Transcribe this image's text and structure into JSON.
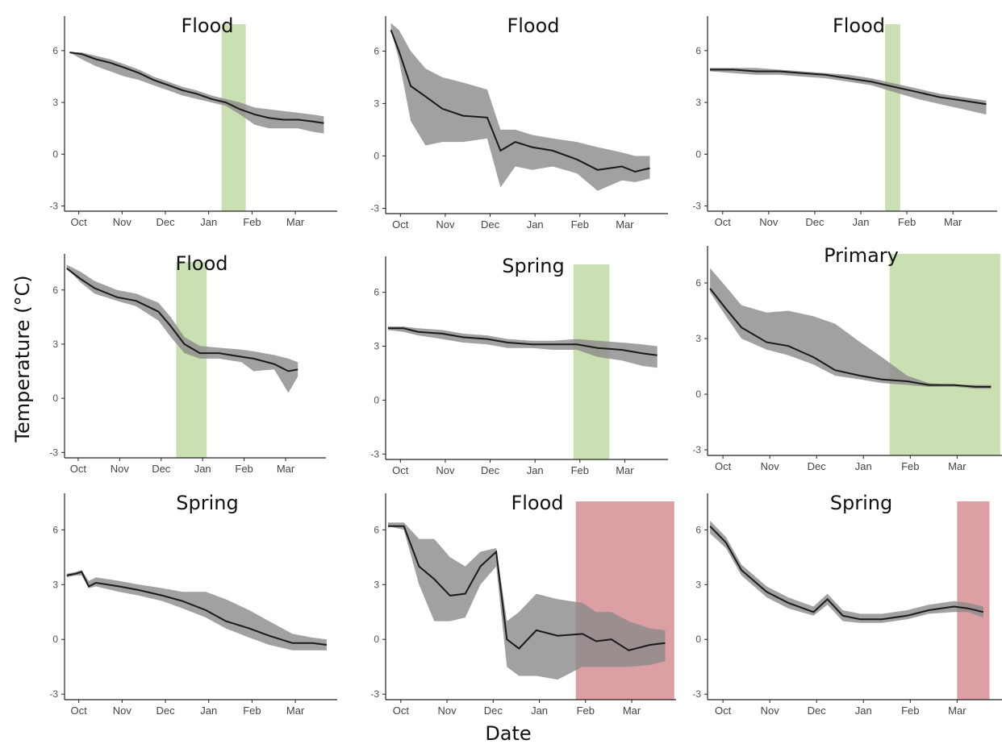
{
  "figure": {
    "ylabel": "Temperature (°C)",
    "xlabel": "Date"
  },
  "colors": {
    "line": "#1a1a1a",
    "ribbon": "#8a8a8a",
    "green": "#a9cc7e",
    "red": "#c0505a"
  },
  "chart_data": [
    {
      "type": "line",
      "title": "Flood",
      "x_ticks": [
        "Oct",
        "Nov",
        "Dec",
        "Jan",
        "Feb",
        "Mar"
      ],
      "y_ticks": [
        "6",
        "3",
        "0",
        "-3"
      ],
      "ylim": [
        -3.3,
        8
      ],
      "x": [
        "09-27",
        "10-05",
        "10-15",
        "10-25",
        "11-05",
        "11-15",
        "11-25",
        "12-05",
        "12-15",
        "12-25",
        "01-05",
        "01-15",
        "01-25",
        "02-05",
        "02-15",
        "02-25",
        "03-05",
        "03-15",
        "03-23"
      ],
      "y": [
        5.9,
        5.8,
        5.5,
        5.3,
        5.0,
        4.7,
        4.3,
        4.0,
        3.7,
        3.5,
        3.2,
        3.0,
        2.6,
        2.3,
        2.1,
        2.0,
        2.0,
        1.9,
        1.8
      ],
      "lower": [
        5.9,
        5.5,
        5.1,
        4.8,
        4.5,
        4.3,
        4.0,
        3.7,
        3.4,
        3.2,
        3.0,
        2.8,
        2.3,
        1.7,
        1.5,
        1.5,
        1.5,
        1.3,
        1.2
      ],
      "upper": [
        5.9,
        5.9,
        5.7,
        5.5,
        5.2,
        4.9,
        4.5,
        4.2,
        3.9,
        3.7,
        3.4,
        3.2,
        3.0,
        2.7,
        2.6,
        2.5,
        2.4,
        2.3,
        2.2
      ],
      "highlight": {
        "start": "01-12",
        "end": "01-29",
        "color": "green"
      }
    },
    {
      "type": "line",
      "title": "Flood",
      "x_ticks": [
        "Oct",
        "Nov",
        "Dec",
        "Jan",
        "Feb",
        "Mar"
      ],
      "y_ticks": [
        "6",
        "3",
        "0",
        "-3"
      ],
      "ylim": [
        -3.3,
        8
      ],
      "x": [
        "09-27",
        "10-02",
        "10-10",
        "10-20",
        "11-01",
        "11-15",
        "12-01",
        "12-10",
        "12-20",
        "01-01",
        "01-15",
        "02-01",
        "02-15",
        "03-01",
        "03-10",
        "03-20"
      ],
      "y": [
        7.2,
        6.0,
        4.0,
        3.4,
        2.7,
        2.3,
        2.2,
        0.3,
        0.8,
        0.5,
        0.3,
        -0.2,
        -0.8,
        -0.6,
        -0.9,
        -0.7
      ],
      "lower": [
        7.2,
        5.5,
        2.0,
        0.6,
        0.8,
        0.8,
        1.0,
        -1.8,
        -0.6,
        -0.8,
        -0.6,
        -1.0,
        -2.0,
        -1.4,
        -1.5,
        -1.3
      ],
      "upper": [
        7.6,
        7.2,
        6.0,
        5.0,
        4.5,
        4.2,
        3.8,
        1.5,
        1.5,
        1.2,
        1.0,
        0.8,
        0.5,
        0.2,
        0.0,
        0.0
      ],
      "highlight": null
    },
    {
      "type": "line",
      "title": "Flood",
      "x_ticks": [
        "Oct",
        "Nov",
        "Dec",
        "Jan",
        "Feb",
        "Mar"
      ],
      "y_ticks": [
        "6",
        "3",
        "0",
        "-3"
      ],
      "ylim": [
        -3.3,
        8
      ],
      "x": [
        "09-25",
        "10-10",
        "10-25",
        "11-10",
        "11-25",
        "12-10",
        "12-25",
        "01-10",
        "01-25",
        "02-10",
        "02-25",
        "03-10",
        "03-25"
      ],
      "y": [
        4.9,
        4.9,
        4.8,
        4.8,
        4.7,
        4.6,
        4.4,
        4.2,
        3.9,
        3.6,
        3.3,
        3.1,
        2.9
      ],
      "lower": [
        4.8,
        4.7,
        4.6,
        4.6,
        4.5,
        4.4,
        4.2,
        4.0,
        3.6,
        3.2,
        2.9,
        2.6,
        2.3
      ],
      "upper": [
        5.0,
        5.0,
        5.0,
        4.9,
        4.8,
        4.7,
        4.6,
        4.4,
        4.1,
        3.8,
        3.5,
        3.3,
        3.1
      ],
      "highlight": {
        "start": "01-19",
        "end": "01-29",
        "color": "green"
      }
    },
    {
      "type": "line",
      "title": "Flood",
      "x_ticks": [
        "Oct",
        "Nov",
        "Dec",
        "Jan",
        "Feb",
        "Mar"
      ],
      "y_ticks": [
        "6",
        "3",
        "0",
        "-3"
      ],
      "ylim": [
        -3.3,
        8
      ],
      "x": [
        "09-25",
        "10-05",
        "10-15",
        "11-01",
        "11-15",
        "12-01",
        "12-10",
        "12-20",
        "01-01",
        "01-15",
        "02-01",
        "02-10",
        "02-25",
        "03-05",
        "03-12"
      ],
      "y": [
        7.2,
        6.6,
        6.1,
        5.6,
        5.4,
        4.8,
        4.0,
        3.0,
        2.5,
        2.5,
        2.3,
        2.2,
        1.9,
        1.5,
        1.6
      ],
      "lower": [
        7.2,
        6.4,
        5.8,
        5.4,
        5.1,
        4.3,
        3.4,
        2.5,
        2.2,
        2.2,
        2.0,
        1.5,
        1.6,
        0.3,
        1.2
      ],
      "upper": [
        7.4,
        7.0,
        6.5,
        6.0,
        5.8,
        5.3,
        4.5,
        3.4,
        2.9,
        2.8,
        2.7,
        2.6,
        2.4,
        2.2,
        2.0
      ],
      "highlight": {
        "start": "12-14",
        "end": "01-06",
        "color": "green"
      }
    },
    {
      "type": "line",
      "title": "Spring",
      "x_ticks": [
        "Oct",
        "Nov",
        "Dec",
        "Jan",
        "Feb",
        "Mar"
      ],
      "y_ticks": [
        "6",
        "3",
        "0",
        "-3"
      ],
      "ylim": [
        -3.3,
        8
      ],
      "x": [
        "09-25",
        "10-05",
        "10-15",
        "11-01",
        "11-15",
        "12-01",
        "12-15",
        "01-01",
        "01-15",
        "02-01",
        "02-15",
        "03-01",
        "03-15",
        "03-25"
      ],
      "y": [
        4.0,
        4.0,
        3.8,
        3.7,
        3.5,
        3.4,
        3.2,
        3.1,
        3.1,
        3.1,
        2.9,
        2.8,
        2.6,
        2.5
      ],
      "lower": [
        3.9,
        3.8,
        3.6,
        3.4,
        3.2,
        3.1,
        2.9,
        2.9,
        2.8,
        2.8,
        2.4,
        2.2,
        1.9,
        1.8
      ],
      "upper": [
        4.1,
        4.1,
        4.0,
        3.9,
        3.7,
        3.6,
        3.4,
        3.3,
        3.3,
        3.4,
        3.3,
        3.2,
        3.1,
        3.0
      ],
      "highlight": {
        "start": "01-29",
        "end": "02-23",
        "color": "green"
      }
    },
    {
      "type": "line",
      "title": "Primary",
      "x_ticks": [
        "Oct",
        "Nov",
        "Dec",
        "Jan",
        "Feb",
        "Mar"
      ],
      "y_ticks": [
        "6",
        "3",
        "0",
        "-3"
      ],
      "ylim": [
        -3.3,
        8
      ],
      "x": [
        "09-25",
        "10-05",
        "10-15",
        "11-01",
        "11-15",
        "12-01",
        "12-15",
        "01-01",
        "01-15",
        "02-01",
        "02-15",
        "03-01",
        "03-15",
        "03-25"
      ],
      "y": [
        5.7,
        4.6,
        3.6,
        2.8,
        2.6,
        2.0,
        1.3,
        1.0,
        0.8,
        0.7,
        0.5,
        0.5,
        0.4,
        0.4
      ],
      "lower": [
        5.5,
        4.2,
        3.0,
        2.4,
        2.1,
        1.6,
        1.0,
        0.8,
        0.6,
        0.5,
        0.4,
        0.4,
        0.3,
        0.3
      ],
      "upper": [
        6.8,
        5.8,
        4.8,
        4.4,
        4.5,
        4.2,
        3.8,
        2.8,
        2.0,
        1.0,
        0.6,
        0.5,
        0.5,
        0.5
      ],
      "highlight": {
        "start": "01-20",
        "end": "03-31",
        "color": "green"
      }
    },
    {
      "type": "line",
      "title": "Spring",
      "x_ticks": [
        "Oct",
        "Nov",
        "Dec",
        "Jan",
        "Feb",
        "Mar"
      ],
      "y_ticks": [
        "6",
        "3",
        "0",
        "-3"
      ],
      "ylim": [
        -3.3,
        8
      ],
      "x": [
        "09-25",
        "10-01",
        "10-05",
        "10-10",
        "10-15",
        "11-01",
        "11-15",
        "12-01",
        "12-15",
        "01-01",
        "01-15",
        "02-01",
        "02-15",
        "03-01",
        "03-15",
        "03-25"
      ],
      "y": [
        3.5,
        3.6,
        3.7,
        2.9,
        3.1,
        2.9,
        2.7,
        2.4,
        2.1,
        1.6,
        1.0,
        0.6,
        0.2,
        -0.2,
        -0.2,
        -0.3
      ],
      "lower": [
        3.4,
        3.5,
        3.5,
        2.8,
        2.9,
        2.6,
        2.4,
        2.1,
        1.7,
        1.2,
        0.6,
        0.1,
        -0.3,
        -0.6,
        -0.6,
        -0.6
      ],
      "upper": [
        3.6,
        3.7,
        3.8,
        3.2,
        3.4,
        3.2,
        3.0,
        2.8,
        2.6,
        2.6,
        2.2,
        1.6,
        1.0,
        0.3,
        0.1,
        0.0
      ],
      "highlight": null
    },
    {
      "type": "line",
      "title": "Flood",
      "x_ticks": [
        "Oct",
        "Nov",
        "Dec",
        "Jan",
        "Feb",
        "Mar"
      ],
      "y_ticks": [
        "6",
        "3",
        "0",
        "-3"
      ],
      "ylim": [
        -3.3,
        8
      ],
      "x": [
        "09-25",
        "10-05",
        "10-15",
        "10-25",
        "11-05",
        "11-15",
        "11-25",
        "12-05",
        "12-12",
        "12-20",
        "01-01",
        "01-15",
        "02-01",
        "02-10",
        "02-20",
        "03-01",
        "03-15",
        "03-25"
      ],
      "y": [
        6.2,
        6.2,
        4.0,
        3.3,
        2.4,
        2.5,
        4.0,
        4.8,
        0.0,
        -0.5,
        0.5,
        0.2,
        0.3,
        -0.1,
        0.0,
        -0.6,
        -0.3,
        -0.2
      ],
      "lower": [
        6.2,
        6.0,
        3.0,
        1.0,
        1.0,
        1.2,
        3.0,
        4.0,
        -1.5,
        -2.0,
        -2.0,
        -2.2,
        -1.5,
        -1.5,
        -1.5,
        -1.5,
        -1.4,
        -1.2
      ],
      "upper": [
        6.4,
        6.4,
        5.5,
        5.5,
        4.5,
        4.0,
        4.8,
        5.0,
        1.0,
        1.5,
        2.5,
        2.2,
        2.0,
        1.5,
        1.5,
        1.0,
        0.6,
        0.5
      ],
      "highlight": {
        "start": "01-27",
        "end": "03-31",
        "color": "red"
      }
    },
    {
      "type": "line",
      "title": "Spring",
      "x_ticks": [
        "Oct",
        "Nov",
        "Dec",
        "Jan",
        "Feb",
        "Mar"
      ],
      "y_ticks": [
        "6",
        "3",
        "0",
        "-3"
      ],
      "ylim": [
        -3.3,
        8
      ],
      "x": [
        "09-25",
        "10-05",
        "10-15",
        "11-01",
        "11-15",
        "12-01",
        "12-10",
        "12-20",
        "01-01",
        "01-15",
        "02-01",
        "02-15",
        "03-01",
        "03-10",
        "03-20"
      ],
      "y": [
        6.2,
        5.3,
        3.8,
        2.6,
        2.0,
        1.5,
        2.2,
        1.3,
        1.1,
        1.1,
        1.3,
        1.6,
        1.8,
        1.7,
        1.5
      ],
      "lower": [
        5.8,
        5.0,
        3.5,
        2.3,
        1.7,
        1.3,
        1.9,
        1.0,
        0.9,
        0.9,
        1.1,
        1.4,
        1.5,
        1.5,
        1.2
      ],
      "upper": [
        6.5,
        5.6,
        4.1,
        2.9,
        2.3,
        1.8,
        2.5,
        1.6,
        1.4,
        1.4,
        1.6,
        1.9,
        2.1,
        2.0,
        1.8
      ],
      "highlight": {
        "start": "03-03",
        "end": "03-24",
        "color": "red"
      }
    }
  ]
}
